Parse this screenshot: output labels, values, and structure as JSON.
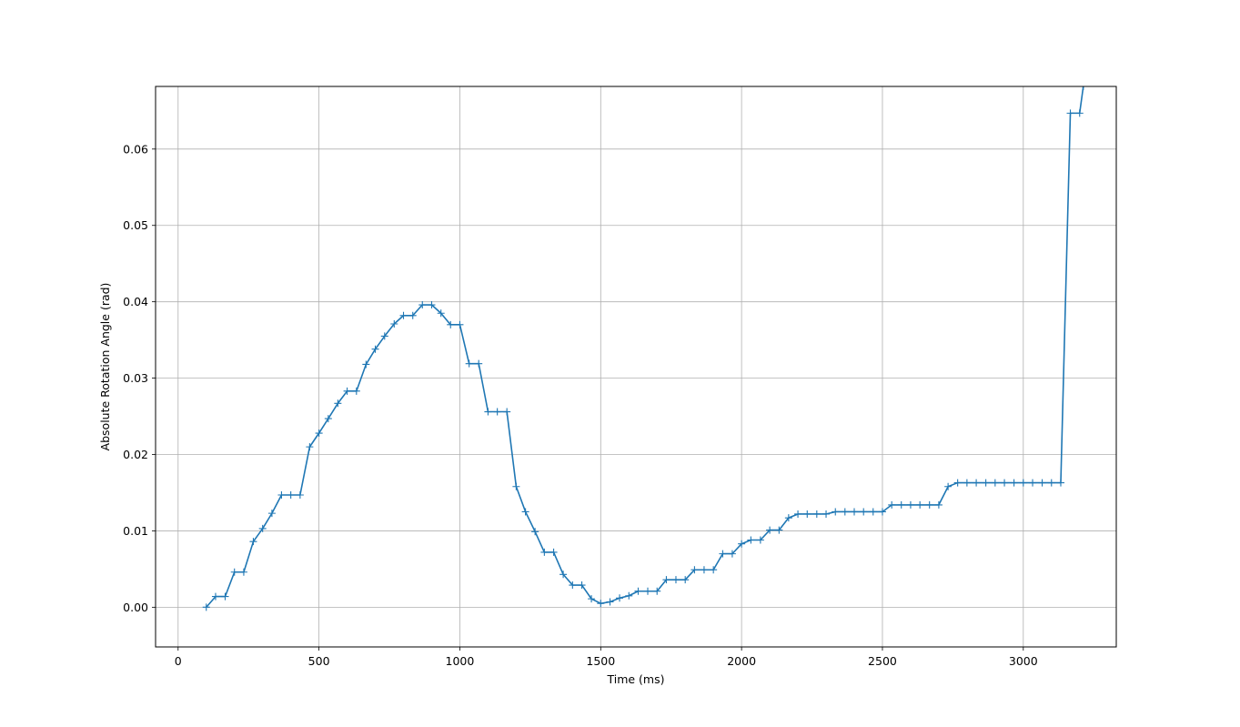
{
  "chart_data": {
    "type": "line",
    "title": "",
    "xlabel": "Time (ms)",
    "ylabel": "Absolute Rotation Angle (rad)",
    "xlim": [
      -80,
      3330
    ],
    "ylim": [
      -0.0052,
      0.0682
    ],
    "xticks": [
      0,
      500,
      1000,
      1500,
      2000,
      2500,
      3000
    ],
    "xtick_labels": [
      "0",
      "500",
      "1000",
      "1500",
      "2000",
      "2500",
      "3000"
    ],
    "yticks": [
      0.0,
      0.01,
      0.02,
      0.03,
      0.04,
      0.05,
      0.06
    ],
    "ytick_labels": [
      "0.00",
      "0.01",
      "0.02",
      "0.03",
      "0.04",
      "0.05",
      "0.06"
    ],
    "grid": true,
    "color": "#1f77b4",
    "marker": "plus",
    "series": [
      {
        "x": [
          100,
          133,
          167,
          200,
          233,
          267,
          300,
          333,
          367,
          400,
          433,
          467,
          500,
          533,
          567,
          600,
          633,
          667,
          700,
          733,
          767,
          800,
          833,
          867,
          900,
          933,
          967,
          1000,
          1033,
          1067,
          1100,
          1133,
          1167,
          1200,
          1233,
          1267,
          1300,
          1333,
          1367,
          1400,
          1433,
          1467,
          1500,
          1533,
          1567,
          1600,
          1633,
          1667,
          1700,
          1733,
          1767,
          1800,
          1833,
          1867,
          1900,
          1933,
          1967,
          2000,
          2033,
          2067,
          2100,
          2133,
          2167,
          2200,
          2233,
          2267,
          2300,
          2333,
          2367,
          2400,
          2433,
          2467,
          2500,
          2533,
          2567,
          2600,
          2633,
          2667,
          2700,
          2733,
          2767,
          2800,
          2833,
          2867,
          2900,
          2933,
          2967,
          3000,
          3033,
          3067,
          3100,
          3133,
          3167,
          3200,
          3213
        ],
        "y": [
          0.0,
          0.0014,
          0.0014,
          0.0046,
          0.0046,
          0.0086,
          0.0103,
          0.0123,
          0.0147,
          0.0147,
          0.0147,
          0.021,
          0.0228,
          0.0247,
          0.0267,
          0.0283,
          0.0283,
          0.0318,
          0.0338,
          0.0355,
          0.0371,
          0.0382,
          0.0382,
          0.0396,
          0.0396,
          0.0385,
          0.037,
          0.037,
          0.0319,
          0.0319,
          0.0256,
          0.0256,
          0.0256,
          0.0158,
          0.0125,
          0.0099,
          0.0072,
          0.0072,
          0.0043,
          0.0029,
          0.0029,
          0.0011,
          0.0005,
          0.0007,
          0.0012,
          0.0015,
          0.0021,
          0.0021,
          0.0021,
          0.0036,
          0.0036,
          0.0036,
          0.0049,
          0.0049,
          0.0049,
          0.007,
          0.007,
          0.0083,
          0.0088,
          0.0088,
          0.0101,
          0.0101,
          0.0117,
          0.0122,
          0.0122,
          0.0122,
          0.0122,
          0.0125,
          0.0125,
          0.0125,
          0.0125,
          0.0125,
          0.0125,
          0.0134,
          0.0134,
          0.0134,
          0.0134,
          0.0134,
          0.0134,
          0.0158,
          0.0163,
          0.0163,
          0.0163,
          0.0163,
          0.0163,
          0.0163,
          0.0163,
          0.0163,
          0.0163,
          0.0163,
          0.0163,
          0.0163,
          0.0647,
          0.0647,
          0.0682
        ]
      }
    ]
  }
}
